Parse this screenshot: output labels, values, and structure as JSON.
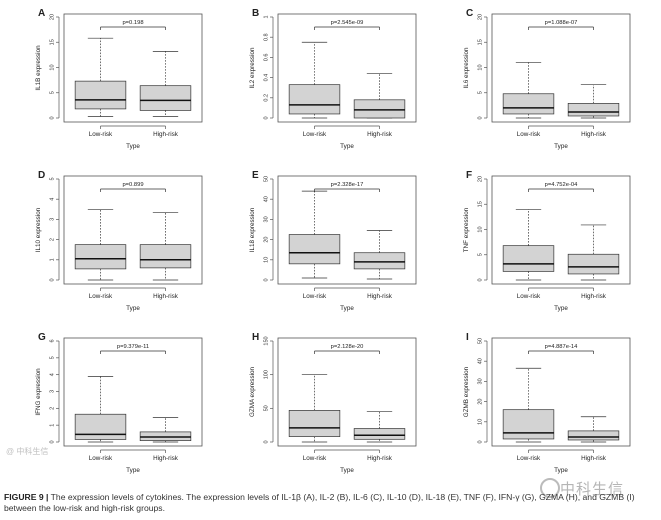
{
  "chart_data": [
    {
      "type": "box",
      "panel": "A",
      "ylabel": "IL1B expression",
      "xlabel": "Type",
      "pvalue": "p=0.198",
      "categories": [
        "Low-risk",
        "High-risk"
      ],
      "ylim": [
        0,
        20
      ],
      "yticks": [
        0,
        5,
        10,
        15,
        20
      ],
      "boxes": [
        {
          "min": 0.3,
          "q1": 1.8,
          "median": 3.6,
          "q3": 7.3,
          "max": 15.8
        },
        {
          "min": 0.3,
          "q1": 1.5,
          "median": 3.5,
          "q3": 6.4,
          "max": 13.2
        }
      ]
    },
    {
      "type": "box",
      "panel": "B",
      "ylabel": "IL2 expression",
      "xlabel": "Type",
      "pvalue": "p=2.545e-09",
      "categories": [
        "Low-risk",
        "High-risk"
      ],
      "ylim": [
        0,
        1.0
      ],
      "yticks": [
        0.0,
        0.2,
        0.4,
        0.6,
        0.8,
        1.0
      ],
      "boxes": [
        {
          "min": 0.0,
          "q1": 0.04,
          "median": 0.13,
          "q3": 0.33,
          "max": 0.75
        },
        {
          "min": 0.0,
          "q1": 0.0,
          "median": 0.08,
          "q3": 0.18,
          "max": 0.44
        }
      ]
    },
    {
      "type": "box",
      "panel": "C",
      "ylabel": "IL6 expression",
      "xlabel": "Type",
      "pvalue": "p=1.088e-07",
      "categories": [
        "Low-risk",
        "High-risk"
      ],
      "ylim": [
        0,
        20
      ],
      "yticks": [
        0,
        5,
        10,
        15,
        20
      ],
      "boxes": [
        {
          "min": 0.0,
          "q1": 0.8,
          "median": 2.0,
          "q3": 4.8,
          "max": 11.0
        },
        {
          "min": 0.0,
          "q1": 0.4,
          "median": 1.2,
          "q3": 2.9,
          "max": 6.6
        }
      ]
    },
    {
      "type": "box",
      "panel": "D",
      "ylabel": "IL10 expression",
      "xlabel": "Type",
      "pvalue": "p=0.899",
      "categories": [
        "Low-risk",
        "High-risk"
      ],
      "ylim": [
        0,
        5
      ],
      "yticks": [
        0,
        1,
        2,
        3,
        4,
        5
      ],
      "boxes": [
        {
          "min": 0.0,
          "q1": 0.55,
          "median": 1.05,
          "q3": 1.75,
          "max": 3.5
        },
        {
          "min": 0.0,
          "q1": 0.6,
          "median": 1.0,
          "q3": 1.75,
          "max": 3.35
        }
      ]
    },
    {
      "type": "box",
      "panel": "E",
      "ylabel": "IL18 expression",
      "xlabel": "Type",
      "pvalue": "p=2.328e-17",
      "categories": [
        "Low-risk",
        "High-risk"
      ],
      "ylim": [
        0,
        50
      ],
      "yticks": [
        0,
        10,
        20,
        30,
        40,
        50
      ],
      "boxes": [
        {
          "min": 1.0,
          "q1": 8.0,
          "median": 13.5,
          "q3": 22.5,
          "max": 44.0
        },
        {
          "min": 0.5,
          "q1": 5.5,
          "median": 9.0,
          "q3": 13.5,
          "max": 24.5
        }
      ]
    },
    {
      "type": "box",
      "panel": "F",
      "ylabel": "TNF expression",
      "xlabel": "Type",
      "pvalue": "p=4.752e-04",
      "categories": [
        "Low-risk",
        "High-risk"
      ],
      "ylim": [
        0,
        20
      ],
      "yticks": [
        0,
        5,
        10,
        15,
        20
      ],
      "boxes": [
        {
          "min": 0.0,
          "q1": 1.7,
          "median": 3.2,
          "q3": 6.8,
          "max": 14.0
        },
        {
          "min": 0.0,
          "q1": 1.2,
          "median": 2.6,
          "q3": 5.1,
          "max": 10.9
        }
      ]
    },
    {
      "type": "box",
      "panel": "G",
      "ylabel": "IFNG expression",
      "xlabel": "Type",
      "pvalue": "p=9.379e-11",
      "categories": [
        "Low-risk",
        "High-risk"
      ],
      "ylim": [
        0,
        6
      ],
      "yticks": [
        0,
        1,
        2,
        3,
        4,
        5,
        6
      ],
      "boxes": [
        {
          "min": 0.0,
          "q1": 0.15,
          "median": 0.45,
          "q3": 1.65,
          "max": 3.9
        },
        {
          "min": 0.0,
          "q1": 0.08,
          "median": 0.3,
          "q3": 0.6,
          "max": 1.45
        }
      ]
    },
    {
      "type": "box",
      "panel": "H",
      "ylabel": "GZMA expression",
      "xlabel": "Type",
      "pvalue": "p=2.128e-20",
      "categories": [
        "Low-risk",
        "High-risk"
      ],
      "ylim": [
        0,
        150
      ],
      "yticks": [
        0,
        50,
        100,
        150
      ],
      "boxes": [
        {
          "min": 0.0,
          "q1": 8.0,
          "median": 21.0,
          "q3": 47.0,
          "max": 100.0
        },
        {
          "min": 0.0,
          "q1": 4.0,
          "median": 10.0,
          "q3": 20.0,
          "max": 45.0
        }
      ]
    },
    {
      "type": "box",
      "panel": "I",
      "ylabel": "GZMB expression",
      "xlabel": "Type",
      "pvalue": "p=4.887e-14",
      "categories": [
        "Low-risk",
        "High-risk"
      ],
      "ylim": [
        0,
        50
      ],
      "yticks": [
        0,
        10,
        20,
        30,
        40,
        50
      ],
      "boxes": [
        {
          "min": 0.0,
          "q1": 1.5,
          "median": 4.5,
          "q3": 16.0,
          "max": 36.5
        },
        {
          "min": 0.0,
          "q1": 1.0,
          "median": 2.5,
          "q3": 5.5,
          "max": 12.5
        }
      ]
    }
  ],
  "caption": {
    "label": "FIGURE 9 |",
    "text": "The expression levels of cytokines. The expression levels of IL-1β (A), IL-2 (B), IL-6 (C), IL-10 (D), IL-18 (E), TNF (F), IFN-γ (G), GZMA (H), and GZMB (I) between the low-risk and high-risk groups."
  },
  "watermark": {
    "text": "中科生信"
  },
  "colors": {
    "box_fill": "#d3d3d3",
    "stroke": "#333333",
    "axis": "#555555"
  }
}
